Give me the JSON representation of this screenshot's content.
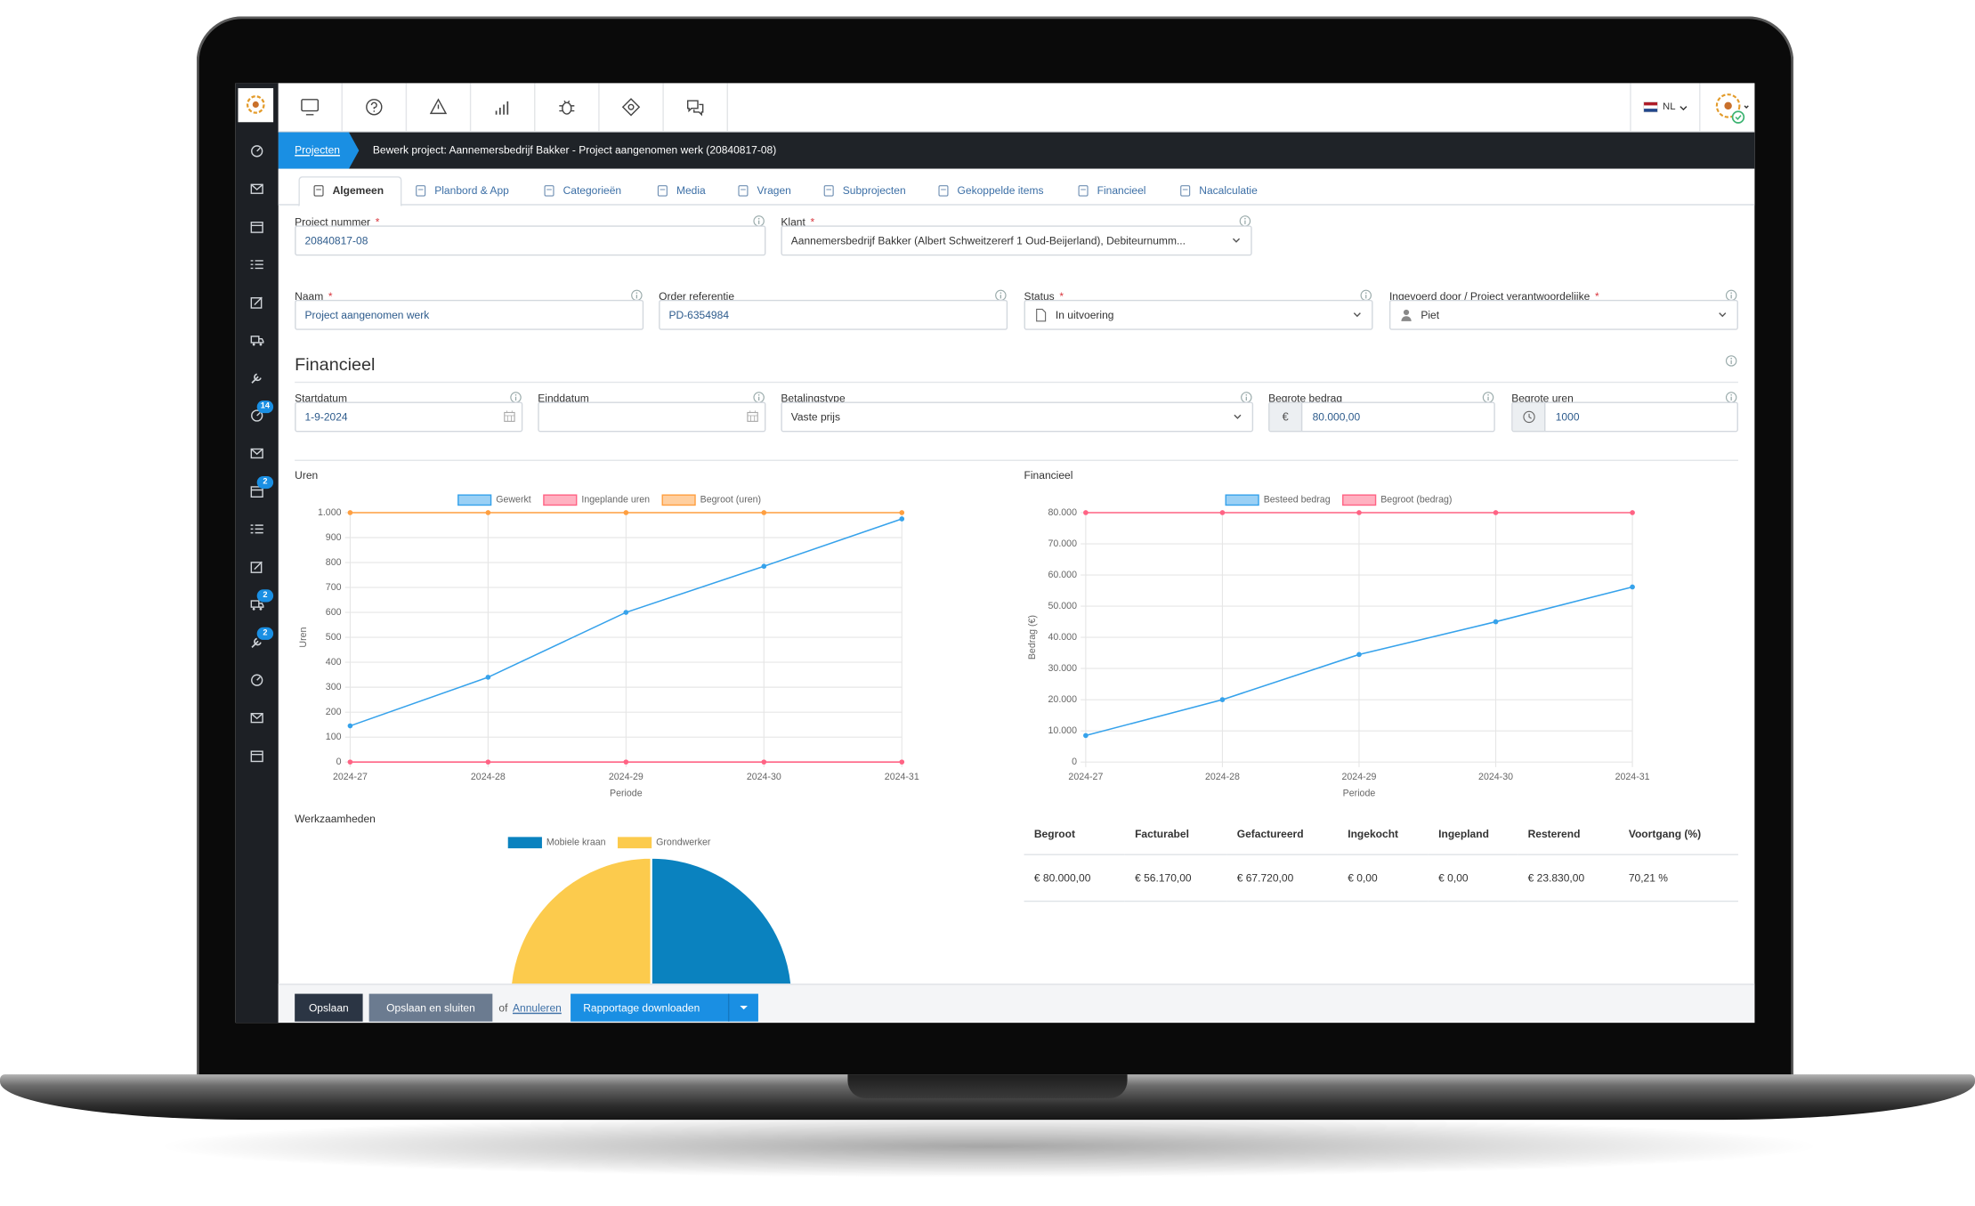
{
  "nav": {
    "language": "NL"
  },
  "sidebar": {
    "badges": [
      null,
      null,
      null,
      null,
      null,
      null,
      null,
      14,
      null,
      2,
      null,
      null,
      2,
      2,
      null,
      null,
      null
    ]
  },
  "breadcrumb": {
    "root": "Projecten",
    "current": "Bewerk project: Aannemersbedrijf Bakker - Project aangenomen werk (20840817-08)"
  },
  "tabs": {
    "items": [
      "Algemeen",
      "Planbord & App",
      "Categorieën",
      "Media",
      "Vragen",
      "Subprojecten",
      "Gekoppelde items",
      "Financieel",
      "Nacalculatie"
    ],
    "active": 0
  },
  "required_mark": "*",
  "general": {
    "rows": [
      [
        {
          "label": "Project nummer",
          "required": true,
          "value": "20840817-08",
          "kind": "text"
        },
        {
          "label": "Klant",
          "required": true,
          "value": "Aannemersbedrijf Bakker (Albert Schweitzererf 1 Oud-Beijerland), Debiteurnumm...",
          "kind": "select"
        }
      ],
      [
        {
          "label": "Naam",
          "required": true,
          "value": "Project aangenomen werk",
          "kind": "text"
        },
        {
          "label": "Order referentie",
          "value": "PD-6354984",
          "kind": "text"
        },
        {
          "label": "Status",
          "required": true,
          "value": "In uitvoering",
          "kind": "select",
          "prefix_icon": "document"
        },
        {
          "label": "Ingevoerd door / Project verantwoordelijke",
          "required": true,
          "value": "Piet",
          "kind": "select",
          "prefix_icon": "person"
        }
      ]
    ]
  },
  "financial": {
    "title": "Financieel",
    "fields": [
      {
        "label": "Startdatum",
        "value": "1-9-2024",
        "kind": "date"
      },
      {
        "label": "Einddatum",
        "value": null,
        "kind": "date"
      },
      {
        "label": "Betalingstype",
        "value": "Vaste prijs",
        "kind": "select"
      },
      {
        "label": "Begrote bedrag",
        "value": "80.000,00",
        "kind": "addon",
        "prefix": "€"
      },
      {
        "label": "Begrote uren",
        "value": "1000",
        "kind": "addon",
        "prefix_icon": "clock"
      }
    ]
  },
  "chart_data": [
    {
      "type": "line",
      "title": "Uren",
      "x_label": "Periode",
      "y_label": "Uren",
      "categories": [
        "2024-27",
        "2024-28",
        "2024-29",
        "2024-30",
        "2024-31"
      ],
      "series": [
        {
          "name": "Gewerkt",
          "color": "#36a2eb",
          "values": [
            145,
            340,
            600,
            785,
            975
          ]
        },
        {
          "name": "Ingeplande uren",
          "color": "#ff6384",
          "values": [
            0,
            0,
            0,
            0,
            0
          ]
        },
        {
          "name": "Begroot (uren)",
          "color": "#ff9f40",
          "values": [
            1000,
            1000,
            1000,
            1000,
            1000
          ]
        }
      ],
      "ylim": [
        0,
        1000
      ],
      "yticks": [
        0,
        100,
        200,
        300,
        400,
        500,
        600,
        700,
        800,
        900,
        {
          "value": 1000,
          "label": "1.000"
        }
      ],
      "grid": true
    },
    {
      "type": "line",
      "title": "Financieel",
      "x_label": "Periode",
      "y_label": "Bedrag (€)",
      "categories": [
        "2024-27",
        "2024-28",
        "2024-29",
        "2024-30",
        "2024-31"
      ],
      "series": [
        {
          "name": "Besteed bedrag",
          "color": "#36a2eb",
          "values": [
            8500,
            20000,
            34500,
            45000,
            56170
          ]
        },
        {
          "name": "Begroot (bedrag)",
          "color": "#ff6384",
          "values": [
            80000,
            80000,
            80000,
            80000,
            80000
          ]
        }
      ],
      "ylim": [
        0,
        80000
      ],
      "yticks": [
        0,
        {
          "value": 10000,
          "label": "10.000"
        },
        {
          "value": 20000,
          "label": "20.000"
        },
        {
          "value": 30000,
          "label": "30.000"
        },
        {
          "value": 40000,
          "label": "40.000"
        },
        {
          "value": 50000,
          "label": "50.000"
        },
        {
          "value": 60000,
          "label": "60.000"
        },
        {
          "value": 70000,
          "label": "70.000"
        },
        {
          "value": 80000,
          "label": "80.000"
        }
      ],
      "grid": true
    },
    {
      "type": "pie",
      "title": "Werkzaamheden",
      "categories": [
        "Mobiele kraan",
        "Grondwerker"
      ],
      "values": [
        50,
        50
      ],
      "colors": [
        "#0a82bf",
        "#fccb4d"
      ]
    }
  ],
  "summary_table": {
    "headers": [
      "Begroot",
      "Facturabel",
      "Gefactureerd",
      "Ingekocht",
      "Ingepland",
      "Resterend",
      "Voortgang (%)"
    ],
    "rows": [
      [
        "€ 80.000,00",
        "€ 56.170,00",
        "€ 67.720,00",
        "€ 0,00",
        "€ 0,00",
        "€ 23.830,00",
        "70,21 %"
      ]
    ]
  },
  "footer": {
    "save": "Opslaan",
    "save_close": "Opslaan en sluiten",
    "or": "of",
    "cancel": "Annuleren",
    "download": "Rapportage downloaden"
  }
}
